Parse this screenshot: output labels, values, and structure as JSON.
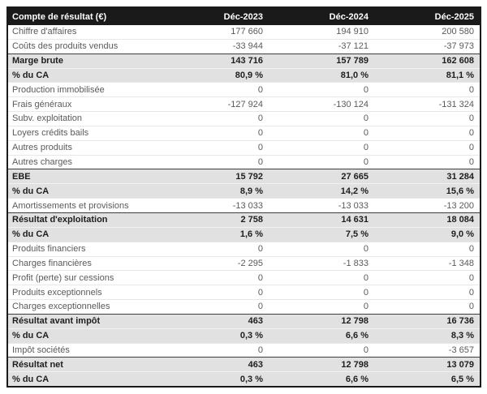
{
  "table": {
    "title_header": "Compte de résultat (€)",
    "columns": [
      "Déc-2023",
      "Déc-2024",
      "Déc-2025"
    ],
    "rows": [
      {
        "label": "Chiffre d'affaires",
        "values": [
          "177 660",
          "194 910",
          "200 580"
        ],
        "style": "normal"
      },
      {
        "label": "Coûts des produits vendus",
        "values": [
          "-33 944",
          "-37 121",
          "-37 973"
        ],
        "style": "normal"
      },
      {
        "label": "Marge brute",
        "values": [
          "143 716",
          "157 789",
          "162 608"
        ],
        "style": "summary"
      },
      {
        "label": "% du CA",
        "values": [
          "80,9 %",
          "81,0 %",
          "81,1 %"
        ],
        "style": "summary"
      },
      {
        "label": "Production immobilisée",
        "values": [
          "0",
          "0",
          "0"
        ],
        "style": "normal"
      },
      {
        "label": "Frais généraux",
        "values": [
          "-127 924",
          "-130 124",
          "-131 324"
        ],
        "style": "normal"
      },
      {
        "label": "Subv. exploitation",
        "values": [
          "0",
          "0",
          "0"
        ],
        "style": "normal"
      },
      {
        "label": "Loyers crédits bails",
        "values": [
          "0",
          "0",
          "0"
        ],
        "style": "normal"
      },
      {
        "label": "Autres produits",
        "values": [
          "0",
          "0",
          "0"
        ],
        "style": "normal"
      },
      {
        "label": "Autres charges",
        "values": [
          "0",
          "0",
          "0"
        ],
        "style": "normal"
      },
      {
        "label": "EBE",
        "values": [
          "15 792",
          "27 665",
          "31 284"
        ],
        "style": "summary"
      },
      {
        "label": "% du CA",
        "values": [
          "8,9 %",
          "14,2 %",
          "15,6 %"
        ],
        "style": "summary"
      },
      {
        "label": "Amortissements et provisions",
        "values": [
          "-13 033",
          "-13 033",
          "-13 200"
        ],
        "style": "normal"
      },
      {
        "label": "Résultat d'exploitation",
        "values": [
          "2 758",
          "14 631",
          "18 084"
        ],
        "style": "summary"
      },
      {
        "label": "% du CA",
        "values": [
          "1,6 %",
          "7,5 %",
          "9,0 %"
        ],
        "style": "summary"
      },
      {
        "label": "Produits financiers",
        "values": [
          "0",
          "0",
          "0"
        ],
        "style": "normal"
      },
      {
        "label": "Charges financières",
        "values": [
          "-2 295",
          "-1 833",
          "-1 348"
        ],
        "style": "normal"
      },
      {
        "label": "Profit (perte) sur cessions",
        "values": [
          "0",
          "0",
          "0"
        ],
        "style": "normal"
      },
      {
        "label": "Produits exceptionnels",
        "values": [
          "0",
          "0",
          "0"
        ],
        "style": "normal"
      },
      {
        "label": "Charges exceptionnelles",
        "values": [
          "0",
          "0",
          "0"
        ],
        "style": "normal"
      },
      {
        "label": "Résultat avant impôt",
        "values": [
          "463",
          "12 798",
          "16 736"
        ],
        "style": "summary"
      },
      {
        "label": "% du CA",
        "values": [
          "0,3 %",
          "6,6 %",
          "8,3 %"
        ],
        "style": "summary"
      },
      {
        "label": "Impôt sociétés",
        "values": [
          "0",
          "0",
          "-3 657"
        ],
        "style": "normal"
      },
      {
        "label": "Résultat net",
        "values": [
          "463",
          "12 798",
          "13 079"
        ],
        "style": "summary"
      },
      {
        "label": "% du CA",
        "values": [
          "0,3 %",
          "6,6 %",
          "6,5 %"
        ],
        "style": "summary"
      }
    ],
    "colors": {
      "header_bg": "#1a1a1a",
      "header_text": "#ffffff",
      "summary_row_bg": "#e1e1e1",
      "summary_row_text": "#1e1e1e",
      "normal_row_text": "#5a5a5a",
      "light_separator": "#e8e8e8",
      "group_separator": "#3d3d3d",
      "outer_border": "#1a1a1a"
    }
  }
}
